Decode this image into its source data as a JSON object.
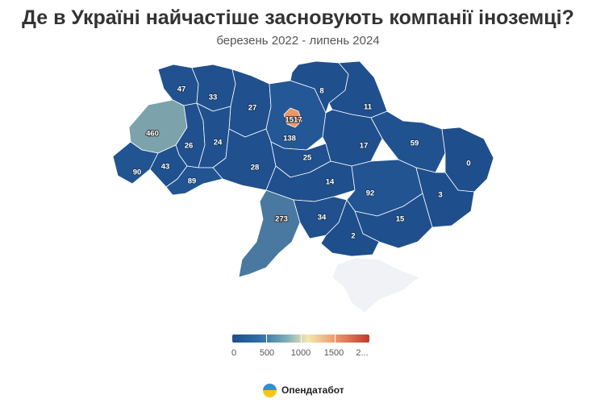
{
  "header": {
    "title": "Де в Україні найчастіше засновують компанії іноземці?",
    "subtitle": "березень 2022 - липень 2024"
  },
  "chart_data": {
    "type": "choropleth",
    "title": "Де в Україні найчастіше засновують компанії іноземці?",
    "subtitle": "березень 2022 - липень 2024",
    "values": [
      47,
      33,
      27,
      8,
      11,
      1517,
      138,
      460,
      26,
      24,
      28,
      25,
      17,
      59,
      90,
      43,
      89,
      14,
      92,
      0,
      3,
      273,
      34,
      15,
      2
    ],
    "colors": {
      "low": "#1f4e8c",
      "mid": "#6f9aaa",
      "high": "#c0392b",
      "crimea": "#f1f2f6"
    },
    "legend": {
      "ticks": [
        "0",
        "500",
        "1000",
        "1500",
        "2..."
      ],
      "min": 0,
      "max": 2000,
      "placement": "bottom-center"
    }
  },
  "brand": {
    "name": "Опендатабот"
  }
}
